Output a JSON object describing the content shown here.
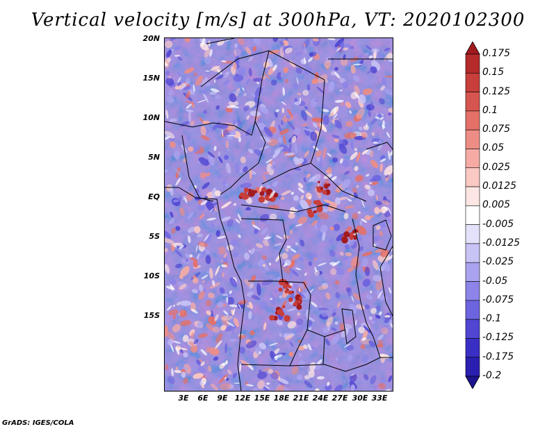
{
  "title": "Vertical velocity [m/s] at 300hPa, VT: 2020102300",
  "credit": "GrADS: IGES/COLA",
  "map": {
    "latitude_labels": [
      "20N",
      "15N",
      "10N",
      "5N",
      "EQ",
      "5S",
      "10S",
      "15S"
    ],
    "longitude_labels": [
      "3E",
      "6E",
      "9E",
      "12E",
      "15E",
      "18E",
      "21E",
      "24E",
      "27E",
      "30E",
      "33E"
    ],
    "colors": {
      "ascent": "#b01f22",
      "descent": "#2a1fb0",
      "neutral": "#ffffff",
      "boundary": "#000000"
    }
  },
  "colorbar": {
    "labels": [
      "0.175",
      "0.15",
      "0.125",
      "0.1",
      "0.075",
      "0.05",
      "0.025",
      "0.0125",
      "0.005",
      "-0.005",
      "-0.0125",
      "-0.025",
      "-0.05",
      "-0.075",
      "-0.1",
      "-0.125",
      "-0.175",
      "-0.2"
    ],
    "colors": [
      "#a11a1e",
      "#b52a2a",
      "#c73e3a",
      "#d75550",
      "#e47068",
      "#ee8d85",
      "#f5aba4",
      "#fac9c4",
      "#fde6e3",
      "#ffffff",
      "#e4e2fb",
      "#c8c3f5",
      "#aaa3ef",
      "#8c84e8",
      "#6d64df",
      "#5046d2",
      "#3a2fc4",
      "#2a1fb0",
      "#1d138f"
    ]
  }
}
